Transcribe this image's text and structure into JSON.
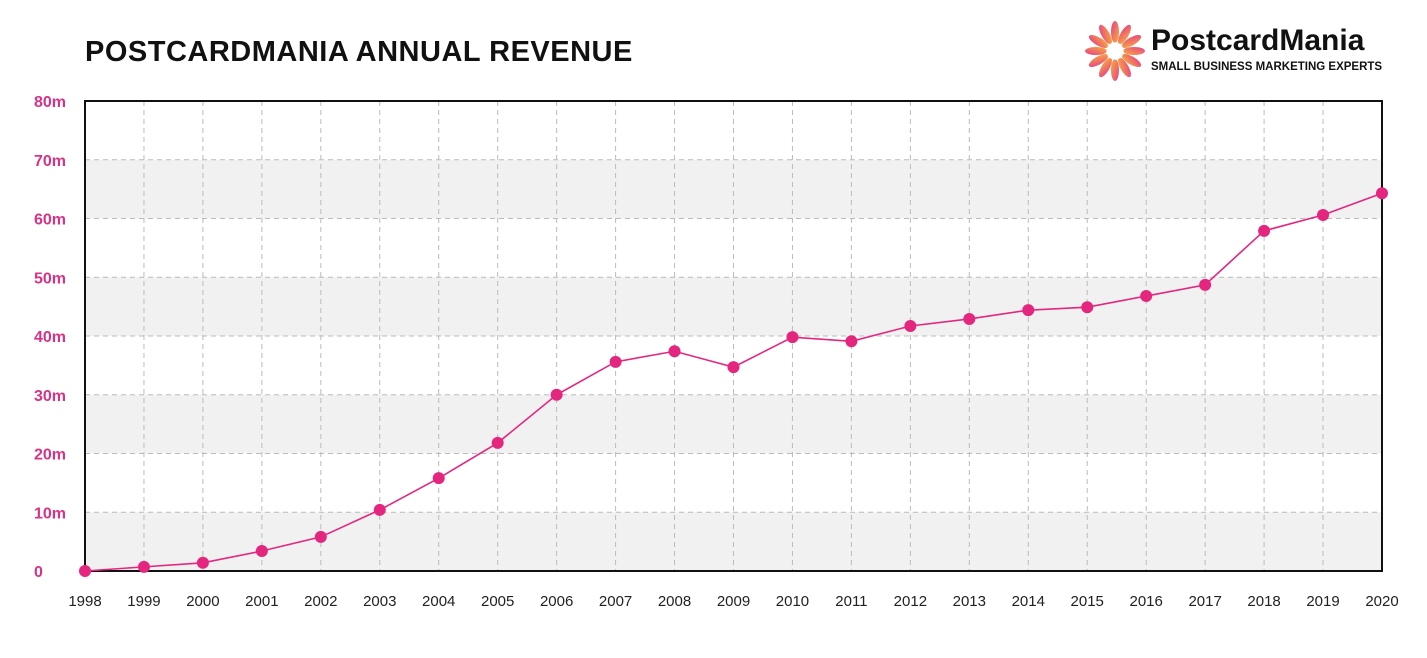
{
  "chart_data": {
    "type": "line",
    "title": "POSTCARDMANIA ANNUAL REVENUE",
    "xlabel": "",
    "ylabel": "",
    "x": [
      "1998",
      "1999",
      "2000",
      "2001",
      "2002",
      "2003",
      "2004",
      "2005",
      "2006",
      "2007",
      "2008",
      "2009",
      "2010",
      "2011",
      "2012",
      "2013",
      "2014",
      "2015",
      "2016",
      "2017",
      "2018",
      "2019",
      "2020"
    ],
    "values": [
      0,
      0.7,
      1.4,
      3.4,
      5.8,
      10.4,
      15.8,
      21.8,
      30.0,
      35.6,
      37.4,
      34.7,
      39.8,
      39.1,
      41.7,
      42.9,
      44.4,
      44.9,
      46.8,
      48.7,
      57.9,
      60.6,
      64.3
    ],
    "unit": "millions",
    "ylim": [
      0,
      80
    ],
    "yticks": [
      0,
      10,
      20,
      30,
      40,
      50,
      60,
      70,
      80
    ],
    "ytick_labels": [
      "0",
      "10m",
      "20m",
      "30m",
      "40m",
      "50m",
      "60m",
      "70m",
      "80m"
    ],
    "grid": true,
    "alternating_bands": true,
    "line_color": "#e5267f",
    "tick_label_color": "#d63384",
    "band_color": "#f1f1f1"
  },
  "logo": {
    "name": "PostcardMania",
    "tagline": "SMALL BUSINESS MARKETING EXPERTS"
  }
}
